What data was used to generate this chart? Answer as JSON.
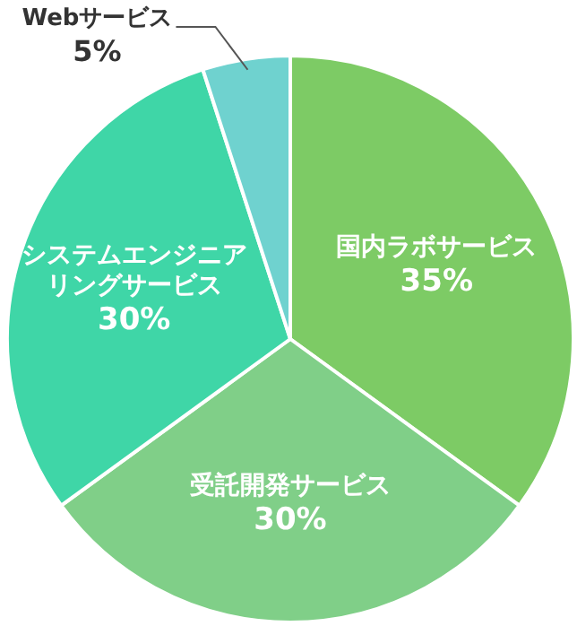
{
  "chart_data": {
    "type": "pie",
    "categories": [
      "国内ラボサービス",
      "受託開発サービス",
      "システムエンジニアリングサービス",
      "Webサービス"
    ],
    "values": [
      35,
      30,
      30,
      5
    ],
    "value_labels": [
      "35%",
      "30%",
      "30%",
      "5%"
    ],
    "colors": [
      "#7dcb65",
      "#80cf88",
      "#3fd6a7",
      "#6fd2cf"
    ]
  }
}
